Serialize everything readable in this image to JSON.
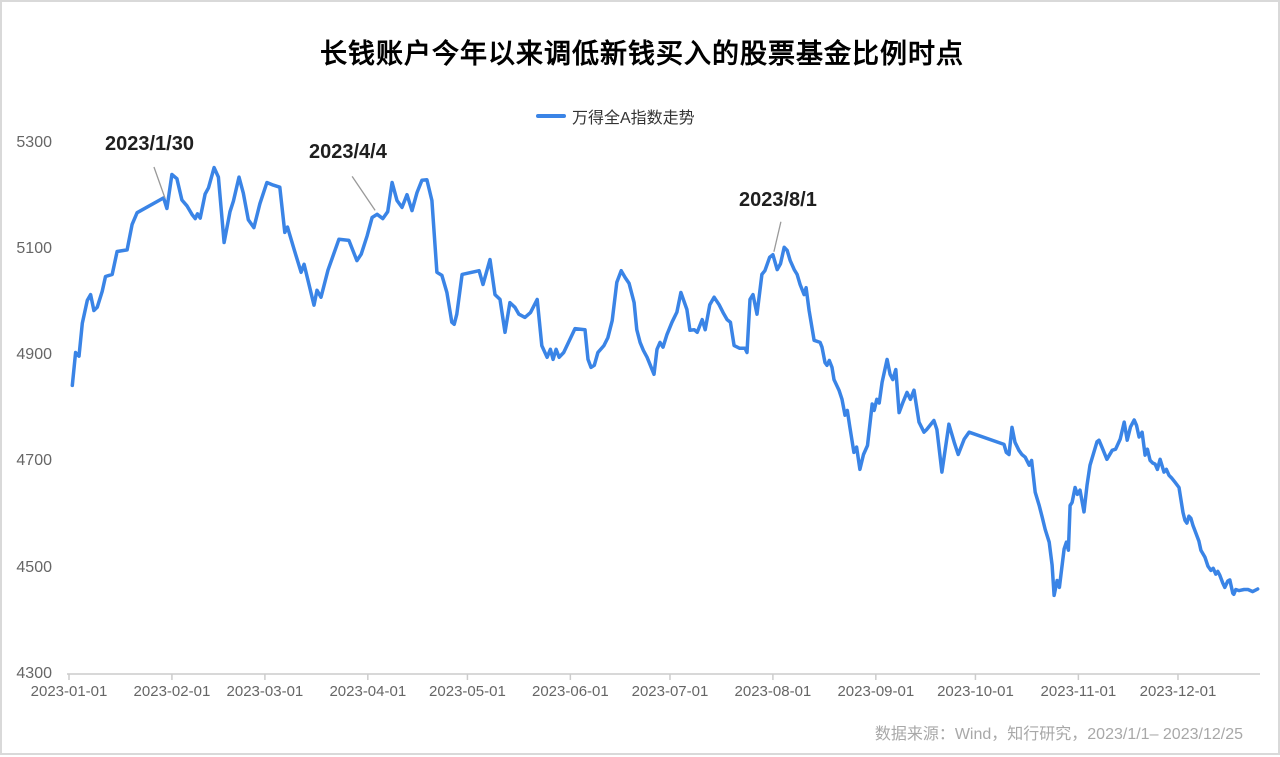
{
  "title": "长钱账户今年以来调低新钱买入的股票基金比例时点",
  "legend": {
    "label": "万得全A指数走势"
  },
  "source_note": "数据来源：Wind，知行研究，2023/1/1– 2023/12/25",
  "colors": {
    "line": "#3a84e6",
    "axis": "#cccccc",
    "tick_label": "#666666",
    "annotation_text": "#1f1f1f",
    "connector": "#999999",
    "source_text": "#a8a8a8"
  },
  "annotations": [
    {
      "label": "2023/1/30",
      "anchor_day": 29.2,
      "anchor_value": 5192
    },
    {
      "label": "2023/4/4",
      "anchor_day": 92.8,
      "anchor_value": 5165
    },
    {
      "label": "2023/8/1",
      "anchor_day": 212.0,
      "anchor_value": 5089
    }
  ],
  "chart_data": {
    "type": "line",
    "title": "长钱账户今年以来调低新钱买入的股票基金比例时点",
    "xlabel": "",
    "ylabel": "",
    "grid": false,
    "legend_position": "top-center",
    "x_axis": {
      "start_date": "2023-01-01",
      "end_date": "2023-12-25",
      "tick_labels": [
        "2023-01-01",
        "2023-02-01",
        "2023-03-01",
        "2023-04-01",
        "2023-05-01",
        "2023-06-01",
        "2023-07-01",
        "2023-08-01",
        "2023-09-01",
        "2023-10-01",
        "2023-11-01",
        "2023-12-01"
      ],
      "tick_day_offsets": [
        0,
        31,
        59,
        90,
        120,
        151,
        181,
        212,
        243,
        273,
        304,
        334
      ]
    },
    "y_axis": {
      "min": 4300,
      "max": 5300,
      "tick_interval": 200,
      "tick_labels": [
        "4300",
        "4500",
        "4700",
        "4900",
        "5100",
        "5300"
      ]
    },
    "series": [
      {
        "name": "万得全A指数走势",
        "points": [
          [
            1,
            4843
          ],
          [
            2,
            4905
          ],
          [
            3,
            4898
          ],
          [
            4,
            4960
          ],
          [
            5.5,
            5003
          ],
          [
            6.5,
            5014
          ],
          [
            7.5,
            4984
          ],
          [
            8.5,
            4990
          ],
          [
            10,
            5020
          ],
          [
            11,
            5048
          ],
          [
            13,
            5052
          ],
          [
            14.5,
            5095
          ],
          [
            17.5,
            5098
          ],
          [
            19,
            5146
          ],
          [
            20.5,
            5168
          ],
          [
            28.5,
            5196
          ],
          [
            29.5,
            5176
          ],
          [
            31,
            5240
          ],
          [
            32.5,
            5232
          ],
          [
            34,
            5192
          ],
          [
            35.5,
            5181
          ],
          [
            37,
            5165
          ],
          [
            38,
            5157
          ],
          [
            38.7,
            5166
          ],
          [
            39.5,
            5158
          ],
          [
            41,
            5203
          ],
          [
            42,
            5215
          ],
          [
            43.7,
            5253
          ],
          [
            45,
            5235
          ],
          [
            46.7,
            5112
          ],
          [
            48.5,
            5170
          ],
          [
            49.5,
            5190
          ],
          [
            51.2,
            5235
          ],
          [
            52.5,
            5205
          ],
          [
            54,
            5155
          ],
          [
            55.7,
            5140
          ],
          [
            57.5,
            5185
          ],
          [
            59.6,
            5225
          ],
          [
            61.5,
            5220
          ],
          [
            63.5,
            5216
          ],
          [
            65,
            5131
          ],
          [
            65.8,
            5141
          ],
          [
            67.8,
            5099
          ],
          [
            69.9,
            5056
          ],
          [
            70.8,
            5071
          ],
          [
            72,
            5040
          ],
          [
            73.8,
            4994
          ],
          [
            74.7,
            5022
          ],
          [
            75.9,
            5009
          ],
          [
            78,
            5060
          ],
          [
            81.3,
            5118
          ],
          [
            84.3,
            5116
          ],
          [
            86.7,
            5078
          ],
          [
            88,
            5090
          ],
          [
            89.8,
            5125
          ],
          [
            91.3,
            5159
          ],
          [
            92.8,
            5165
          ],
          [
            94.5,
            5157
          ],
          [
            96,
            5170
          ],
          [
            97.3,
            5225
          ],
          [
            98.8,
            5191
          ],
          [
            100.3,
            5178
          ],
          [
            101.8,
            5202
          ],
          [
            103.3,
            5172
          ],
          [
            104.8,
            5206
          ],
          [
            106.3,
            5229
          ],
          [
            107.8,
            5230
          ],
          [
            109.3,
            5191
          ],
          [
            110.8,
            5056
          ],
          [
            112.3,
            5050
          ],
          [
            113.8,
            5018
          ],
          [
            115.3,
            4962
          ],
          [
            116,
            4958
          ],
          [
            116.8,
            4977
          ],
          [
            118.4,
            5052
          ],
          [
            123.5,
            5059
          ],
          [
            124.7,
            5033
          ],
          [
            126.8,
            5080
          ],
          [
            128.3,
            5014
          ],
          [
            129.8,
            5005
          ],
          [
            131.3,
            4943
          ],
          [
            132.8,
            4999
          ],
          [
            134.3,
            4990
          ],
          [
            135.5,
            4977
          ],
          [
            137.3,
            4971
          ],
          [
            139,
            4980
          ],
          [
            141,
            5005
          ],
          [
            142.4,
            4918
          ],
          [
            144,
            4896
          ],
          [
            145,
            4911
          ],
          [
            145.8,
            4892
          ],
          [
            146.7,
            4911
          ],
          [
            147.6,
            4896
          ],
          [
            149,
            4905
          ],
          [
            152.4,
            4950
          ],
          [
            155.4,
            4948
          ],
          [
            156.3,
            4892
          ],
          [
            157.2,
            4877
          ],
          [
            158.2,
            4881
          ],
          [
            159.3,
            4905
          ],
          [
            161.1,
            4918
          ],
          [
            162.3,
            4933
          ],
          [
            163.6,
            4965
          ],
          [
            165,
            5037
          ],
          [
            166.3,
            5059
          ],
          [
            167.5,
            5046
          ],
          [
            168.7,
            5035
          ],
          [
            170.2,
            4999
          ],
          [
            171,
            4948
          ],
          [
            172,
            4924
          ],
          [
            173,
            4909
          ],
          [
            174.1,
            4896
          ],
          [
            176.2,
            4864
          ],
          [
            177.1,
            4911
          ],
          [
            178,
            4924
          ],
          [
            178.9,
            4915
          ],
          [
            180.1,
            4939
          ],
          [
            181.6,
            4962
          ],
          [
            183.1,
            4981
          ],
          [
            184.3,
            5018
          ],
          [
            186.1,
            4986
          ],
          [
            187,
            4947
          ],
          [
            188.3,
            4948
          ],
          [
            189.2,
            4943
          ],
          [
            190.7,
            4967
          ],
          [
            191.6,
            4948
          ],
          [
            193,
            4995
          ],
          [
            194.3,
            5009
          ],
          [
            195.8,
            4995
          ],
          [
            197,
            4980
          ],
          [
            198.2,
            4967
          ],
          [
            199.2,
            4962
          ],
          [
            200.3,
            4918
          ],
          [
            202,
            4913
          ],
          [
            203.6,
            4913
          ],
          [
            204.2,
            4905
          ],
          [
            205.1,
            5005
          ],
          [
            206,
            5014
          ],
          [
            207.2,
            4977
          ],
          [
            208.7,
            5052
          ],
          [
            209.6,
            5059
          ],
          [
            211,
            5084
          ],
          [
            212,
            5089
          ],
          [
            213.3,
            5061
          ],
          [
            214.3,
            5072
          ],
          [
            215.4,
            5103
          ],
          [
            216.3,
            5097
          ],
          [
            217.2,
            5078
          ],
          [
            218.4,
            5061
          ],
          [
            219.3,
            5052
          ],
          [
            220.2,
            5033
          ],
          [
            221.4,
            5014
          ],
          [
            222,
            5027
          ],
          [
            222.9,
            4984
          ],
          [
            224.4,
            4928
          ],
          [
            226.2,
            4924
          ],
          [
            226.8,
            4915
          ],
          [
            227.7,
            4886
          ],
          [
            228.3,
            4881
          ],
          [
            229,
            4890
          ],
          [
            229.8,
            4877
          ],
          [
            230.4,
            4854
          ],
          [
            231.9,
            4834
          ],
          [
            232.8,
            4817
          ],
          [
            233.7,
            4787
          ],
          [
            234.4,
            4796
          ],
          [
            235.2,
            4764
          ],
          [
            236.4,
            4717
          ],
          [
            237.2,
            4727
          ],
          [
            238.2,
            4685
          ],
          [
            239.3,
            4713
          ],
          [
            240.5,
            4730
          ],
          [
            241.9,
            4808
          ],
          [
            242.5,
            4796
          ],
          [
            243.3,
            4817
          ],
          [
            244,
            4810
          ],
          [
            244.9,
            4849
          ],
          [
            246.4,
            4892
          ],
          [
            247.3,
            4864
          ],
          [
            248.1,
            4854
          ],
          [
            249,
            4873
          ],
          [
            250,
            4792
          ],
          [
            251.2,
            4812
          ],
          [
            252.4,
            4830
          ],
          [
            253.4,
            4817
          ],
          [
            254.5,
            4834
          ],
          [
            256,
            4774
          ],
          [
            257.5,
            4755
          ],
          [
            258.3,
            4760
          ],
          [
            260.5,
            4777
          ],
          [
            261.4,
            4760
          ],
          [
            262.9,
            4680
          ],
          [
            265,
            4770
          ],
          [
            266.6,
            4736
          ],
          [
            267.8,
            4713
          ],
          [
            269.6,
            4742
          ],
          [
            271.1,
            4755
          ],
          [
            281.6,
            4732
          ],
          [
            282.3,
            4717
          ],
          [
            283.1,
            4713
          ],
          [
            284,
            4764
          ],
          [
            284.9,
            4736
          ],
          [
            286.1,
            4721
          ],
          [
            287,
            4713
          ],
          [
            288,
            4708
          ],
          [
            289.2,
            4693
          ],
          [
            289.9,
            4702
          ],
          [
            291,
            4642
          ],
          [
            292.2,
            4617
          ],
          [
            293.1,
            4595
          ],
          [
            294,
            4572
          ],
          [
            295.2,
            4548
          ],
          [
            296.1,
            4505
          ],
          [
            296.7,
            4448
          ],
          [
            297.6,
            4476
          ],
          [
            298.3,
            4463
          ],
          [
            299.7,
            4535
          ],
          [
            300.4,
            4548
          ],
          [
            301,
            4533
          ],
          [
            301.5,
            4617
          ],
          [
            302.1,
            4623
          ],
          [
            303,
            4651
          ],
          [
            303.7,
            4638
          ],
          [
            304.5,
            4646
          ],
          [
            305.7,
            4605
          ],
          [
            306.6,
            4655
          ],
          [
            307.5,
            4693
          ],
          [
            309.6,
            4737
          ],
          [
            310.2,
            4740
          ],
          [
            311.1,
            4727
          ],
          [
            312.6,
            4704
          ],
          [
            314.2,
            4721
          ],
          [
            315.2,
            4723
          ],
          [
            316.6,
            4742
          ],
          [
            317.8,
            4774
          ],
          [
            318.7,
            4740
          ],
          [
            319.7,
            4765
          ],
          [
            320.8,
            4778
          ],
          [
            321.5,
            4768
          ],
          [
            322.3,
            4746
          ],
          [
            323.2,
            4755
          ],
          [
            324.1,
            4712
          ],
          [
            324.8,
            4723
          ],
          [
            325.6,
            4702
          ],
          [
            326.4,
            4697
          ],
          [
            327.1,
            4695
          ],
          [
            327.8,
            4685
          ],
          [
            328.6,
            4704
          ],
          [
            329.8,
            4680
          ],
          [
            330.5,
            4685
          ],
          [
            331.3,
            4674
          ],
          [
            332.2,
            4668
          ],
          [
            333.1,
            4661
          ],
          [
            334.3,
            4651
          ],
          [
            335.5,
            4604
          ],
          [
            336.1,
            4589
          ],
          [
            336.7,
            4584
          ],
          [
            337.3,
            4597
          ],
          [
            337.9,
            4593
          ],
          [
            338.5,
            4580
          ],
          [
            339.1,
            4570
          ],
          [
            340.3,
            4550
          ],
          [
            340.9,
            4533
          ],
          [
            342.1,
            4520
          ],
          [
            343,
            4503
          ],
          [
            343.9,
            4495
          ],
          [
            344.6,
            4499
          ],
          [
            345.4,
            4488
          ],
          [
            346,
            4493
          ],
          [
            346.6,
            4486
          ],
          [
            347.5,
            4471
          ],
          [
            348.1,
            4463
          ],
          [
            349,
            4475
          ],
          [
            349.6,
            4477
          ],
          [
            350.5,
            4452
          ],
          [
            350.8,
            4450
          ],
          [
            351.4,
            4459
          ],
          [
            352.4,
            4457
          ],
          [
            353.9,
            4459
          ],
          [
            355.1,
            4459
          ],
          [
            356.5,
            4455
          ],
          [
            358,
            4460
          ]
        ]
      }
    ]
  }
}
